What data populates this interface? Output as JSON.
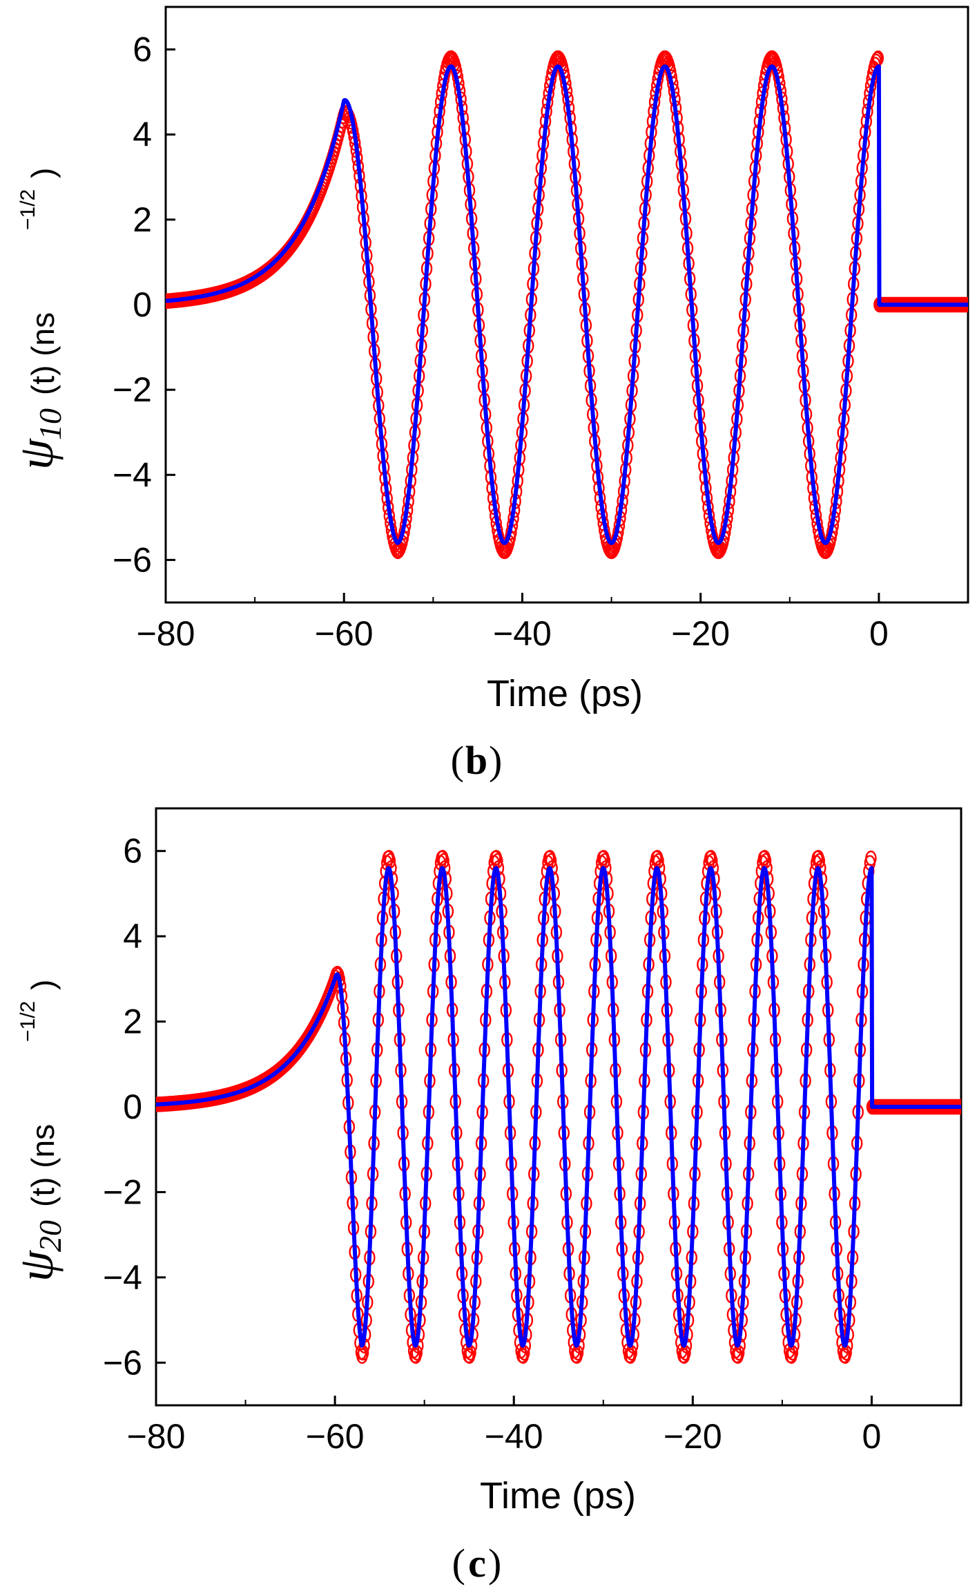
{
  "chart_data": [
    {
      "type": "scatter",
      "panel_label": "b",
      "panel_open": "(",
      "panel_close": ")",
      "title": "",
      "xlabel": "Time (ps)",
      "ylabel": {
        "symbol": "ψ",
        "subscript": "10",
        "rest": "(t) (ns",
        "exponent": "−1/2",
        "close": ")"
      },
      "xlim": [
        -80,
        10
      ],
      "ylim": [
        -7,
        7
      ],
      "x_ticks": [
        -80,
        -60,
        -40,
        -20,
        0
      ],
      "x_tick_labels": [
        "−80",
        "−60",
        "−40",
        "−20",
        "0"
      ],
      "y_ticks": [
        -6,
        -4,
        -2,
        0,
        2,
        4,
        6
      ],
      "y_tick_labels": [
        "−6",
        "−4",
        "−2",
        "0",
        "2",
        "4",
        "6"
      ],
      "legend": "none",
      "series": [
        {
          "name": "markers",
          "style": "open-circle",
          "color": "#ff0000",
          "function": "psi_n",
          "n": 10,
          "amplitude": 5.8,
          "pre_peak": 4.5,
          "tail_tau_ps": 5,
          "t_start_ps": -60,
          "t_end_ps": 0,
          "x_range": [
            -80,
            10
          ]
        },
        {
          "name": "line",
          "style": "solid-line",
          "color": "#0000ff",
          "function": "psi_n",
          "n": 10,
          "amplitude": 5.6,
          "pre_peak": 4.8,
          "tail_tau_ps": 5,
          "t_start_ps": -60,
          "t_end_ps": 0,
          "x_range": [
            -80,
            10
          ]
        }
      ]
    },
    {
      "type": "scatter",
      "panel_label": "c",
      "panel_open": "(",
      "panel_close": ")",
      "title": "",
      "xlabel": "Time (ps)",
      "ylabel": {
        "symbol": "ψ",
        "subscript": "20",
        "rest": "(t) (ns",
        "exponent": "−1/2",
        "close": ")"
      },
      "xlim": [
        -80,
        10
      ],
      "ylim": [
        -7,
        7
      ],
      "x_ticks": [
        -80,
        -60,
        -40,
        -20,
        0
      ],
      "x_tick_labels": [
        "−80",
        "−60",
        "−40",
        "−20",
        "0"
      ],
      "y_ticks": [
        -6,
        -4,
        -2,
        0,
        2,
        4,
        6
      ],
      "y_tick_labels": [
        "−6",
        "−4",
        "−2",
        "0",
        "2",
        "4",
        "6"
      ],
      "legend": "none",
      "series": [
        {
          "name": "markers",
          "style": "open-circle",
          "color": "#ff0000",
          "function": "psi_n",
          "n": 20,
          "amplitude": 5.85,
          "pre_peak": 3.0,
          "tail_tau_ps": 5,
          "t_start_ps": -60,
          "t_end_ps": 0,
          "x_range": [
            -80,
            10
          ]
        },
        {
          "name": "line",
          "style": "solid-line",
          "color": "#0000ff",
          "function": "psi_n",
          "n": 20,
          "amplitude": 5.6,
          "pre_peak": 3.0,
          "tail_tau_ps": 5,
          "t_start_ps": -60,
          "t_end_ps": 0,
          "x_range": [
            -80,
            10
          ]
        }
      ]
    }
  ]
}
